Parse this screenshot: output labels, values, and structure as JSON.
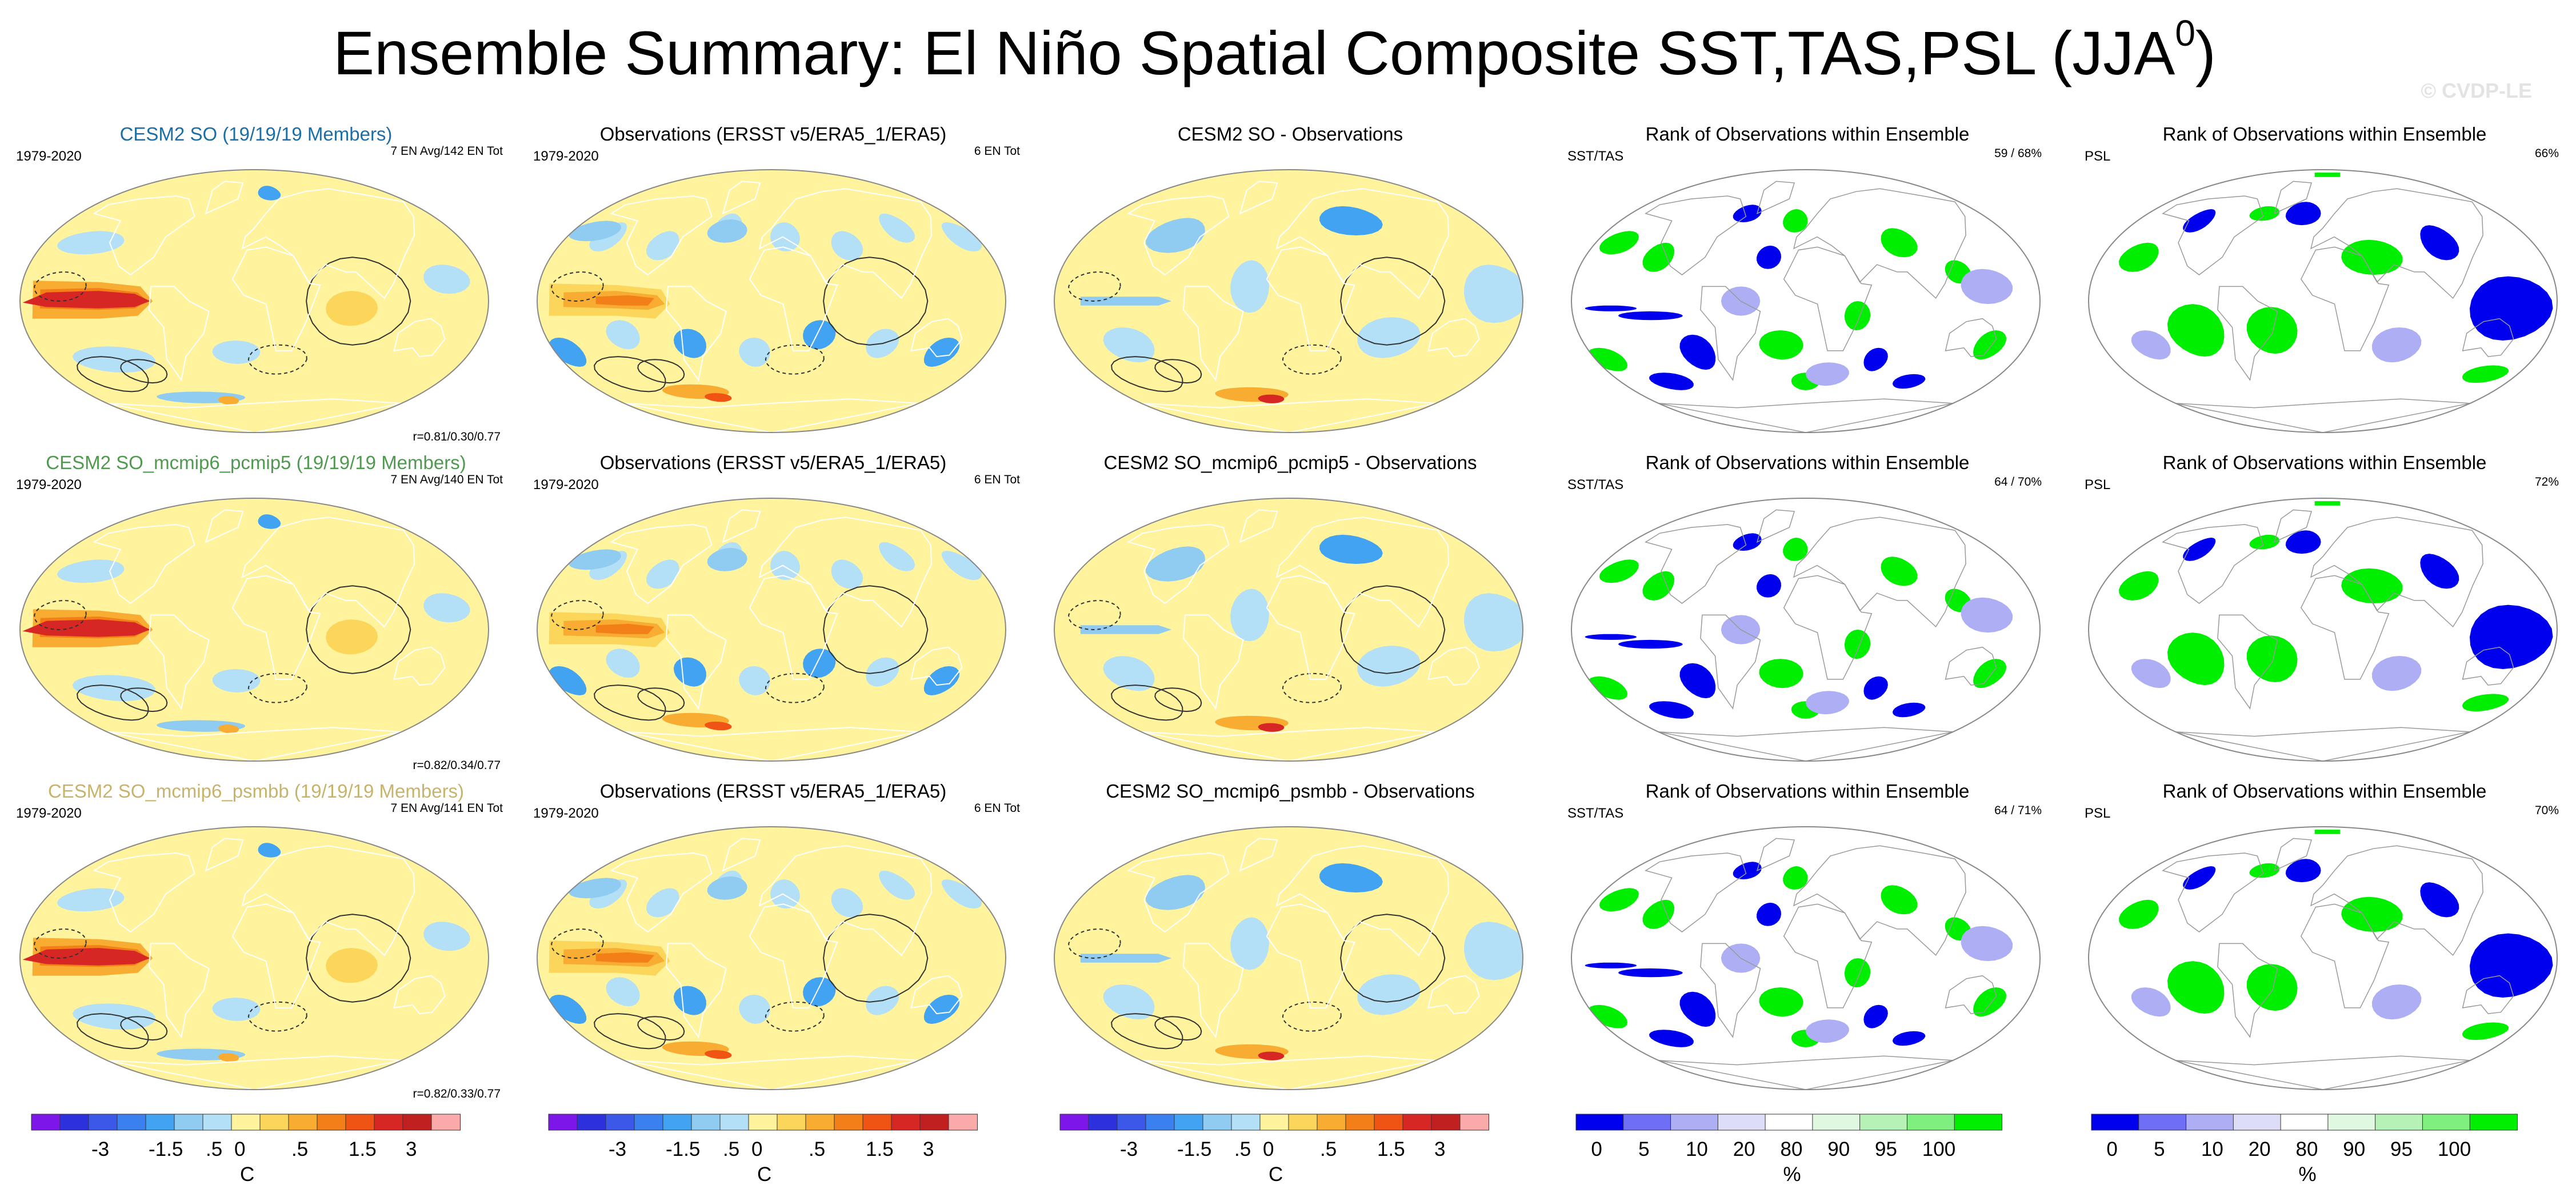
{
  "title": "Ensemble Summary: El Niño Spatial Composite SST,TAS,PSL (JJA",
  "title_superscript": "0",
  "title_close": ")",
  "watermark": "© CVDP-LE",
  "colors": {
    "ssta_scale": [
      "#7d16e8",
      "#2d31dd",
      "#3c58e8",
      "#3b80ef",
      "#41a3f2",
      "#90ccf1",
      "#b3e0f7",
      "#fff39d",
      "#fbd65a",
      "#f8ac31",
      "#f37f19",
      "#ef5414",
      "#d62725",
      "#c0201f",
      "#fbaaaa"
    ],
    "rank_scale": [
      "#0000ee",
      "#6f6ff5",
      "#aeaef5",
      "#ddddf8",
      "#ffffff",
      "#e0f8e0",
      "#b6f2b6",
      "#7ff07f",
      "#00ee00"
    ],
    "model_title_blue": "#1c6ea6",
    "model_title_green": "#4f9a4f",
    "model_title_tan": "#c8b36c"
  },
  "chart_data": [
    {
      "type": "heatmap",
      "row": 1,
      "title": "CESM2 SO (19/19/19 Members)",
      "period": "1979-2020",
      "info": "7 EN Avg/142 EN Tot",
      "stats": "r=0.81/0.30/0.77",
      "map": "ssta",
      "mode": "model",
      "colorbar": "C"
    },
    {
      "type": "heatmap",
      "row": 1,
      "title": "Observations (ERSST v5/ERA5_1/ERA5)",
      "period": "1979-2020",
      "info": "6 EN Tot",
      "map": "ssta",
      "mode": "obs"
    },
    {
      "type": "heatmap",
      "row": 1,
      "title": "CESM2 SO - Observations",
      "map": "ssta",
      "mode": "diff"
    },
    {
      "type": "heatmap",
      "row": 1,
      "title": "Rank of Observations within Ensemble",
      "variables": "SST/TAS",
      "info": "59 /  68%",
      "map": "rank",
      "mode": "sst"
    },
    {
      "type": "heatmap",
      "row": 1,
      "title": "Rank of Observations within Ensemble",
      "variables": "PSL",
      "info": "66%",
      "map": "rank",
      "mode": "psl"
    },
    {
      "type": "heatmap",
      "row": 2,
      "title": "CESM2 SO_mcmip6_pcmip5 (19/19/19 Members)",
      "period": "1979-2020",
      "info": "7 EN Avg/140 EN Tot",
      "stats": "r=0.82/0.34/0.77",
      "map": "ssta",
      "mode": "model"
    },
    {
      "type": "heatmap",
      "row": 2,
      "title": "Observations (ERSST v5/ERA5_1/ERA5)",
      "period": "1979-2020",
      "info": "6 EN Tot",
      "map": "ssta",
      "mode": "obs"
    },
    {
      "type": "heatmap",
      "row": 2,
      "title": "CESM2 SO_mcmip6_pcmip5 - Observations",
      "map": "ssta",
      "mode": "diff"
    },
    {
      "type": "heatmap",
      "row": 2,
      "title": "Rank of Observations within Ensemble",
      "variables": "SST/TAS",
      "info": "64 /  70%",
      "map": "rank",
      "mode": "sst"
    },
    {
      "type": "heatmap",
      "row": 2,
      "title": "Rank of Observations within Ensemble",
      "variables": "PSL",
      "info": "72%",
      "map": "rank",
      "mode": "psl"
    },
    {
      "type": "heatmap",
      "row": 3,
      "title": "CESM2 SO_mcmip6_psmbb (19/19/19 Members)",
      "period": "1979-2020",
      "info": "7 EN Avg/141 EN Tot",
      "stats": "r=0.82/0.33/0.77",
      "map": "ssta",
      "mode": "model"
    },
    {
      "type": "heatmap",
      "row": 3,
      "title": "Observations (ERSST v5/ERA5_1/ERA5)",
      "period": "1979-2020",
      "info": "6 EN Tot",
      "map": "ssta",
      "mode": "obs"
    },
    {
      "type": "heatmap",
      "row": 3,
      "title": "CESM2 SO_mcmip6_psmbb - Observations",
      "map": "ssta",
      "mode": "diff"
    },
    {
      "type": "heatmap",
      "row": 3,
      "title": "Rank of Observations within Ensemble",
      "variables": "SST/TAS",
      "info": "64 /  71%",
      "map": "rank",
      "mode": "sst"
    },
    {
      "type": "heatmap",
      "row": 3,
      "title": "Rank of Observations within Ensemble",
      "variables": "PSL",
      "info": "70%",
      "map": "rank",
      "mode": "psl"
    }
  ],
  "colorbars": {
    "ssta": {
      "unit": "C",
      "ticks": [
        "-3",
        "-1.5",
        ".5",
        "0",
        ".5",
        "1.5",
        "3"
      ],
      "tick_boundaries": [
        2,
        4,
        6,
        7,
        9,
        11,
        13
      ],
      "levels": 14
    },
    "rank": {
      "unit": "%",
      "ticks": [
        "0",
        "5",
        "10",
        "20",
        "80",
        "90",
        "95",
        "100"
      ],
      "tick_boundaries": [
        0,
        1,
        2,
        3,
        4,
        5,
        6,
        7
      ],
      "levels": 8
    }
  }
}
